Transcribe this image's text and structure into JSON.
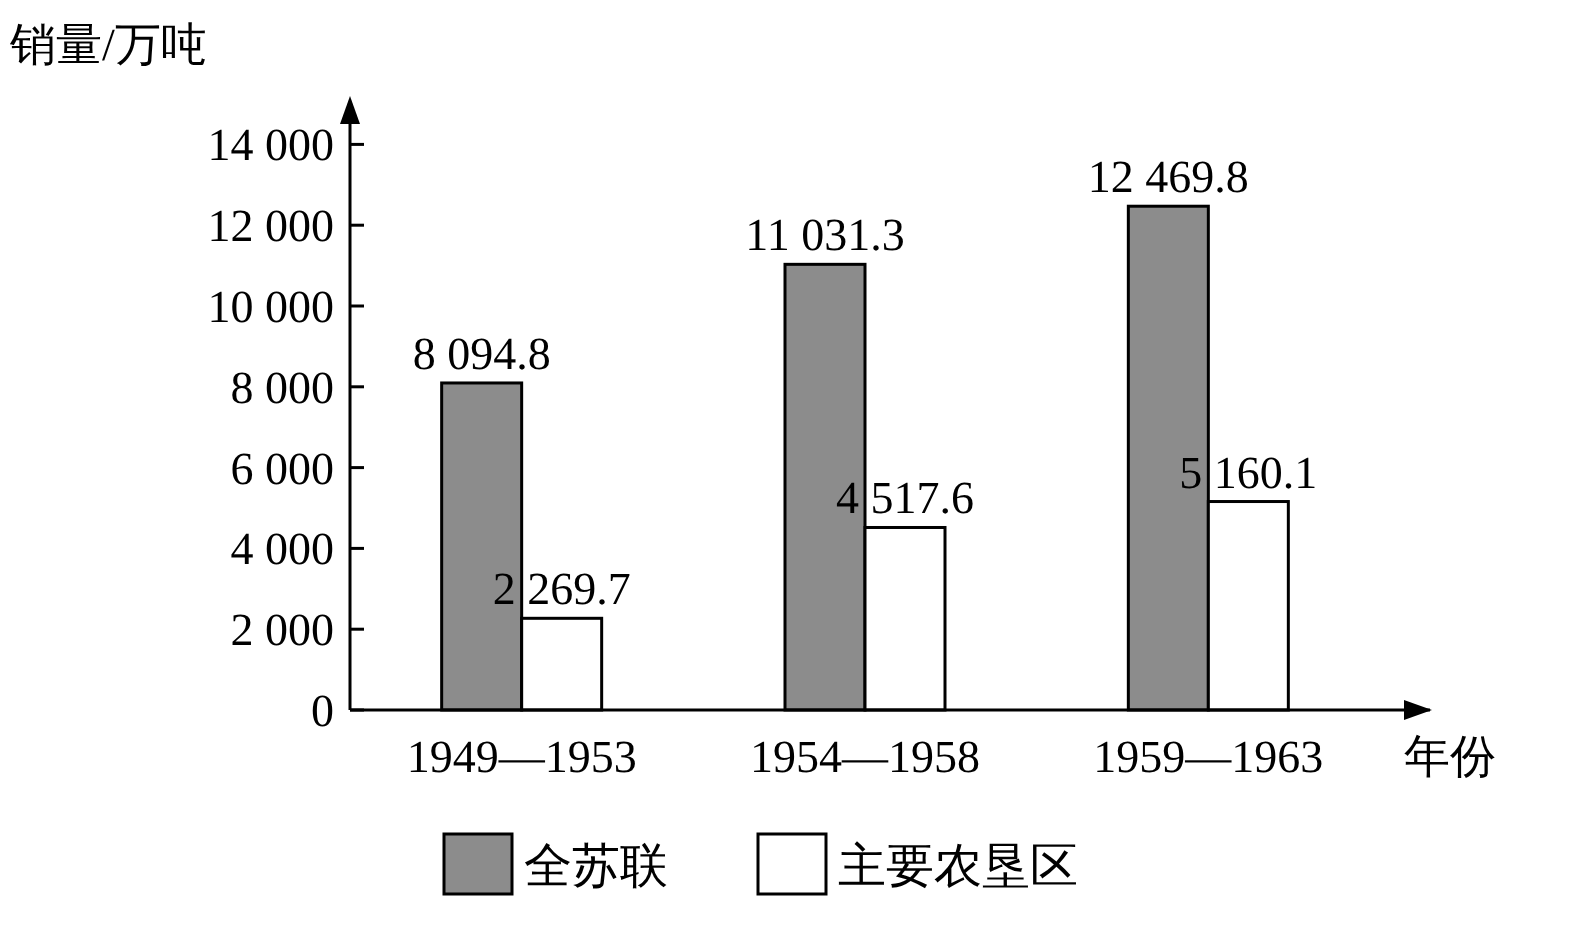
{
  "chart_data": {
    "type": "bar",
    "ylabel": "销量/万吨",
    "xlabel": "年份",
    "categories": [
      "1949—1953",
      "1954—1958",
      "1959—1963"
    ],
    "series": [
      {
        "name": "全苏联",
        "color": "#8c8c8c",
        "values": [
          8094.8,
          11031.3,
          12469.8
        ],
        "value_labels": [
          "8 094.8",
          "11 031.3",
          "12 469.8"
        ]
      },
      {
        "name": "主要农垦区",
        "color": "#ffffff",
        "values": [
          2269.7,
          4517.6,
          5160.1
        ],
        "value_labels": [
          "2 269.7",
          "4 517.6",
          "5 160.1"
        ]
      }
    ],
    "ylim": [
      0,
      15000
    ],
    "yticks": [
      {
        "value": 0,
        "label": "0"
      },
      {
        "value": 2000,
        "label": "2 000"
      },
      {
        "value": 4000,
        "label": "4 000"
      },
      {
        "value": 6000,
        "label": "6 000"
      },
      {
        "value": 8000,
        "label": "8 000"
      },
      {
        "value": 10000,
        "label": "10 000"
      },
      {
        "value": 12000,
        "label": "12 000"
      },
      {
        "value": 14000,
        "label": "14 000"
      }
    ],
    "grid": false,
    "legend": "bottom"
  }
}
